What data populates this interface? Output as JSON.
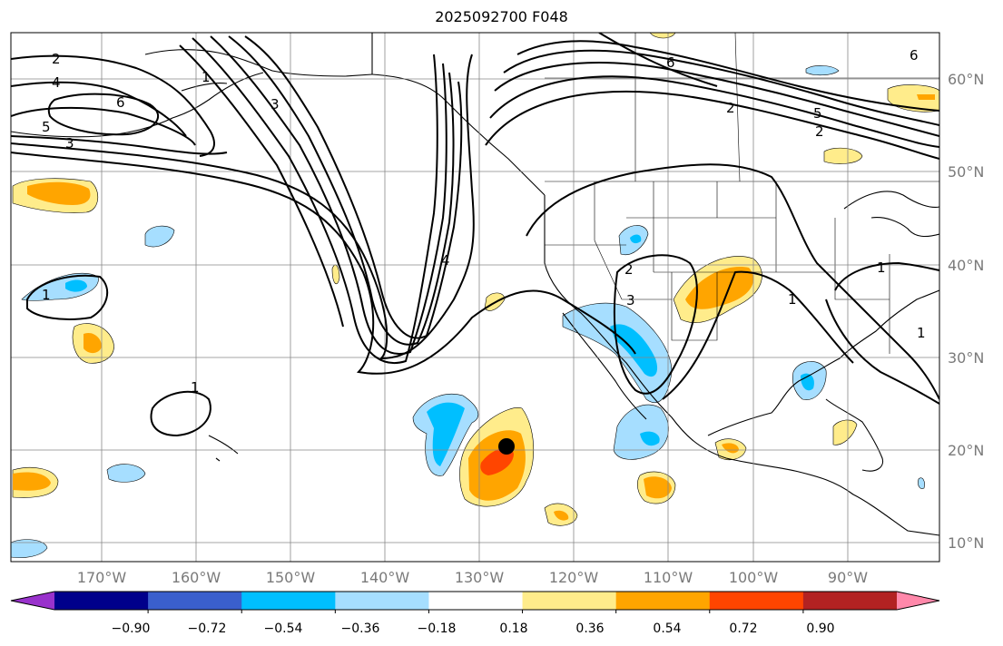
{
  "title": "2025092700 F048",
  "lon_ticks": [
    "170°W",
    "160°W",
    "150°W",
    "140°W",
    "130°W",
    "120°W",
    "110°W",
    "100°W",
    "90°W"
  ],
  "lat_ticks": [
    "60°N",
    "50°N",
    "40°N",
    "30°N",
    "20°N",
    "10°N"
  ],
  "colorbar": {
    "colors": [
      "#9932cc",
      "#00008b",
      "#3a5fcd",
      "#00bfff",
      "#a6deff",
      "#ffffff",
      "#ffec8b",
      "#ffa500",
      "#ff4500",
      "#b22222",
      "#ff88aa"
    ],
    "ticks": [
      "−0.90",
      "−0.72",
      "−0.54",
      "−0.36",
      "−0.18",
      "0.18",
      "0.36",
      "0.54",
      "0.72",
      "0.90"
    ]
  },
  "contour_labels": [
    "2",
    "4",
    "6",
    "5",
    "3",
    "1",
    "3",
    "6",
    "4",
    "1",
    "2",
    "3",
    "1",
    "1",
    "2",
    "6",
    "5",
    "2",
    "1",
    "1"
  ],
  "marker": {
    "label": "storm-center",
    "lon": -126.5,
    "lat": 20.3
  }
}
